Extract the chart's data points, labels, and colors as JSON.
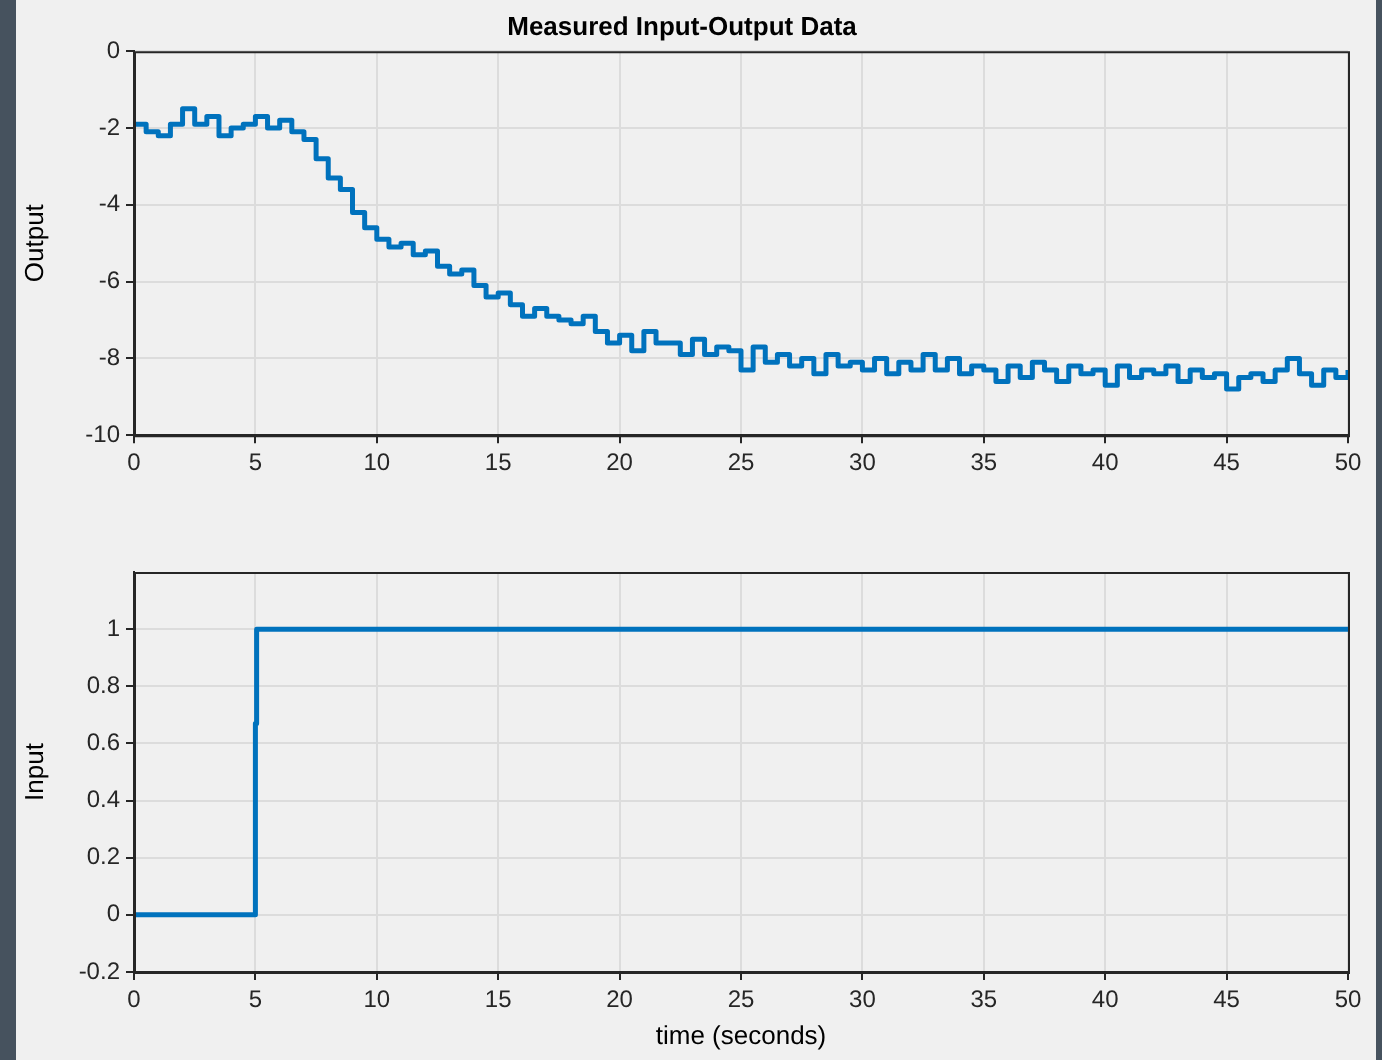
{
  "chart_data": [
    {
      "type": "step",
      "title": "Measured Input-Output Data",
      "ylabel": "Output",
      "x": [
        0,
        0.5,
        1,
        1.5,
        2,
        2.5,
        3,
        3.5,
        4,
        4.5,
        5,
        5.5,
        6,
        6.5,
        7,
        7.5,
        8,
        8.5,
        9,
        9.5,
        10,
        10.5,
        11,
        11.5,
        12,
        12.5,
        13,
        13.5,
        14,
        14.5,
        15,
        15.5,
        16,
        16.5,
        17,
        17.5,
        18,
        18.5,
        19,
        19.5,
        20,
        20.5,
        21,
        21.5,
        22,
        22.5,
        23,
        23.5,
        24,
        24.5,
        25,
        25.5,
        26,
        26.5,
        27,
        27.5,
        28,
        28.5,
        29,
        29.5,
        30,
        30.5,
        31,
        31.5,
        32,
        32.5,
        33,
        33.5,
        34,
        34.5,
        35,
        35.5,
        36,
        36.5,
        37,
        37.5,
        38,
        38.5,
        39,
        39.5,
        40,
        40.5,
        41,
        41.5,
        42,
        42.5,
        43,
        43.5,
        44,
        44.5,
        45,
        45.5,
        46,
        46.5,
        47,
        47.5,
        48,
        48.5,
        49,
        49.5,
        50
      ],
      "series": [
        {
          "color": "#0072bd",
          "values": [
            -1.9,
            -2.1,
            -2.2,
            -1.9,
            -1.5,
            -1.9,
            -1.7,
            -2.2,
            -2.0,
            -1.9,
            -1.7,
            -2.0,
            -1.8,
            -2.1,
            -2.3,
            -2.8,
            -3.3,
            -3.6,
            -4.2,
            -4.6,
            -4.9,
            -5.1,
            -5.0,
            -5.3,
            -5.2,
            -5.6,
            -5.8,
            -5.7,
            -6.1,
            -6.4,
            -6.3,
            -6.6,
            -6.9,
            -6.7,
            -6.9,
            -7.0,
            -7.1,
            -6.9,
            -7.3,
            -7.6,
            -7.4,
            -7.8,
            -7.3,
            -7.6,
            -7.6,
            -7.9,
            -7.5,
            -7.9,
            -7.7,
            -7.8,
            -8.3,
            -7.7,
            -8.1,
            -7.9,
            -8.2,
            -8.0,
            -8.4,
            -7.9,
            -8.2,
            -8.1,
            -8.3,
            -8.0,
            -8.4,
            -8.1,
            -8.3,
            -7.9,
            -8.3,
            -8.0,
            -8.4,
            -8.2,
            -8.3,
            -8.6,
            -8.2,
            -8.5,
            -8.1,
            -8.3,
            -8.6,
            -8.2,
            -8.4,
            -8.3,
            -8.7,
            -8.2,
            -8.5,
            -8.3,
            -8.4,
            -8.2,
            -8.6,
            -8.3,
            -8.5,
            -8.4,
            -8.8,
            -8.5,
            -8.4,
            -8.6,
            -8.3,
            -8.0,
            -8.4,
            -8.7,
            -8.3,
            -8.5,
            -8.3
          ]
        }
      ],
      "xlim": [
        0,
        50
      ],
      "xticks": [
        0,
        5,
        10,
        15,
        20,
        25,
        30,
        35,
        40,
        45,
        50
      ],
      "ylim": [
        -10,
        0
      ],
      "yticks": [
        -10,
        -8,
        -6,
        -4,
        -2,
        0
      ],
      "grid": true,
      "legend": false
    },
    {
      "type": "step",
      "xlabel": "time (seconds)",
      "ylabel": "Input",
      "x": [
        0,
        5,
        5.05,
        50
      ],
      "series": [
        {
          "color": "#0072bd",
          "values": [
            0,
            0.67,
            1,
            1
          ]
        }
      ],
      "xlim": [
        0,
        50
      ],
      "xticks": [
        0,
        5,
        10,
        15,
        20,
        25,
        30,
        35,
        40,
        45,
        50
      ],
      "ylim": [
        -0.2,
        1.2
      ],
      "yticks": [
        -0.2,
        0,
        0.2,
        0.4,
        0.6,
        0.8,
        1
      ],
      "grid": true,
      "legend": false
    }
  ]
}
